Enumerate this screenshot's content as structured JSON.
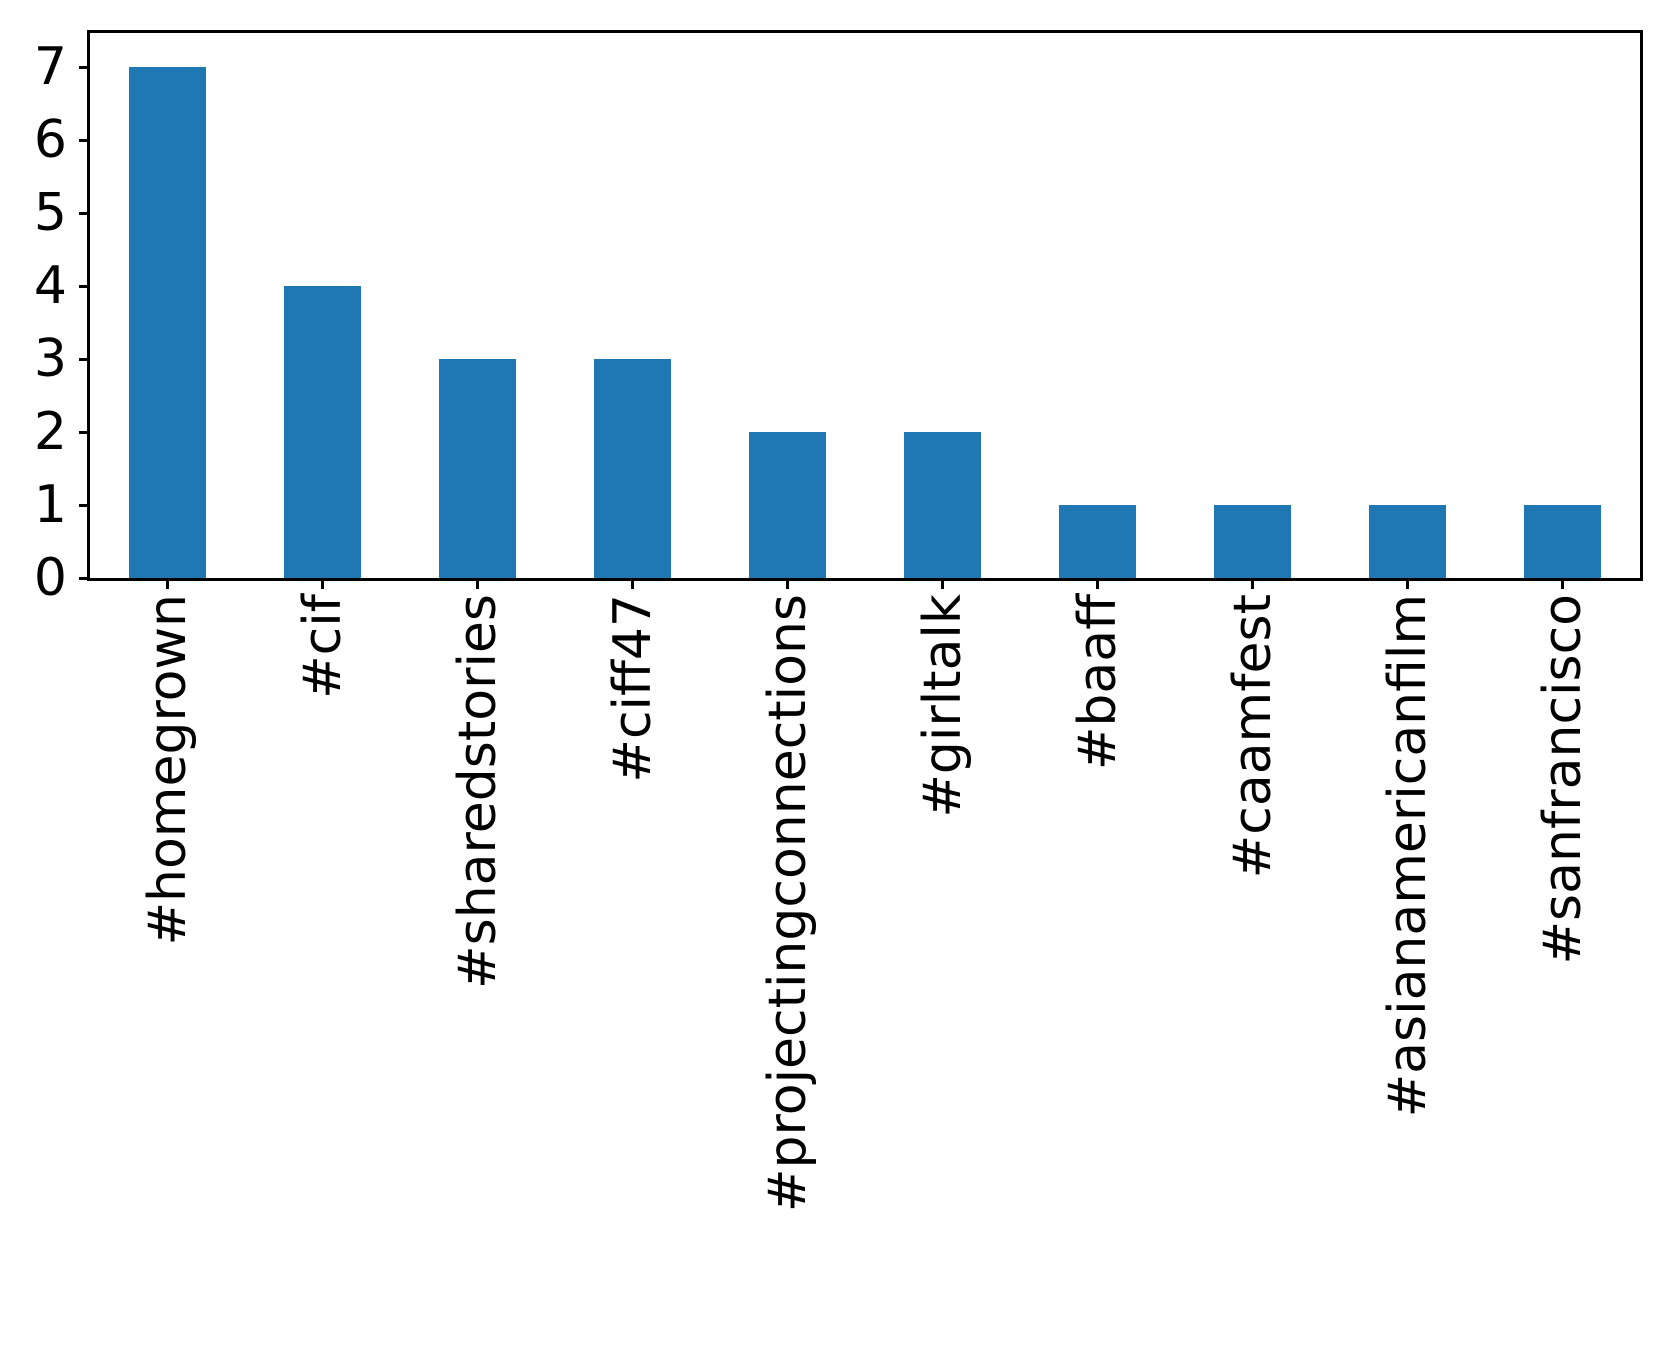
{
  "chart_data": {
    "type": "bar",
    "categories": [
      "#homegrown",
      "#cif",
      "#sharedstories",
      "#ciff47",
      "#projectingconnections",
      "#girltalk",
      "#baaff",
      "#caamfest",
      "#asianamericanfilm",
      "#sanfrancisco"
    ],
    "values": [
      7,
      4,
      3,
      3,
      2,
      2,
      1,
      1,
      1,
      1
    ],
    "title": "",
    "xlabel": "",
    "ylabel": "",
    "ylim": [
      0,
      7.47
    ],
    "yticks": [
      0,
      1,
      2,
      3,
      4,
      5,
      6,
      7
    ],
    "xtick_rotation": 90,
    "bar_color": "#1f77b4",
    "axis_color": "#000000",
    "background_color": "#ffffff",
    "grid": false,
    "legend": false
  }
}
